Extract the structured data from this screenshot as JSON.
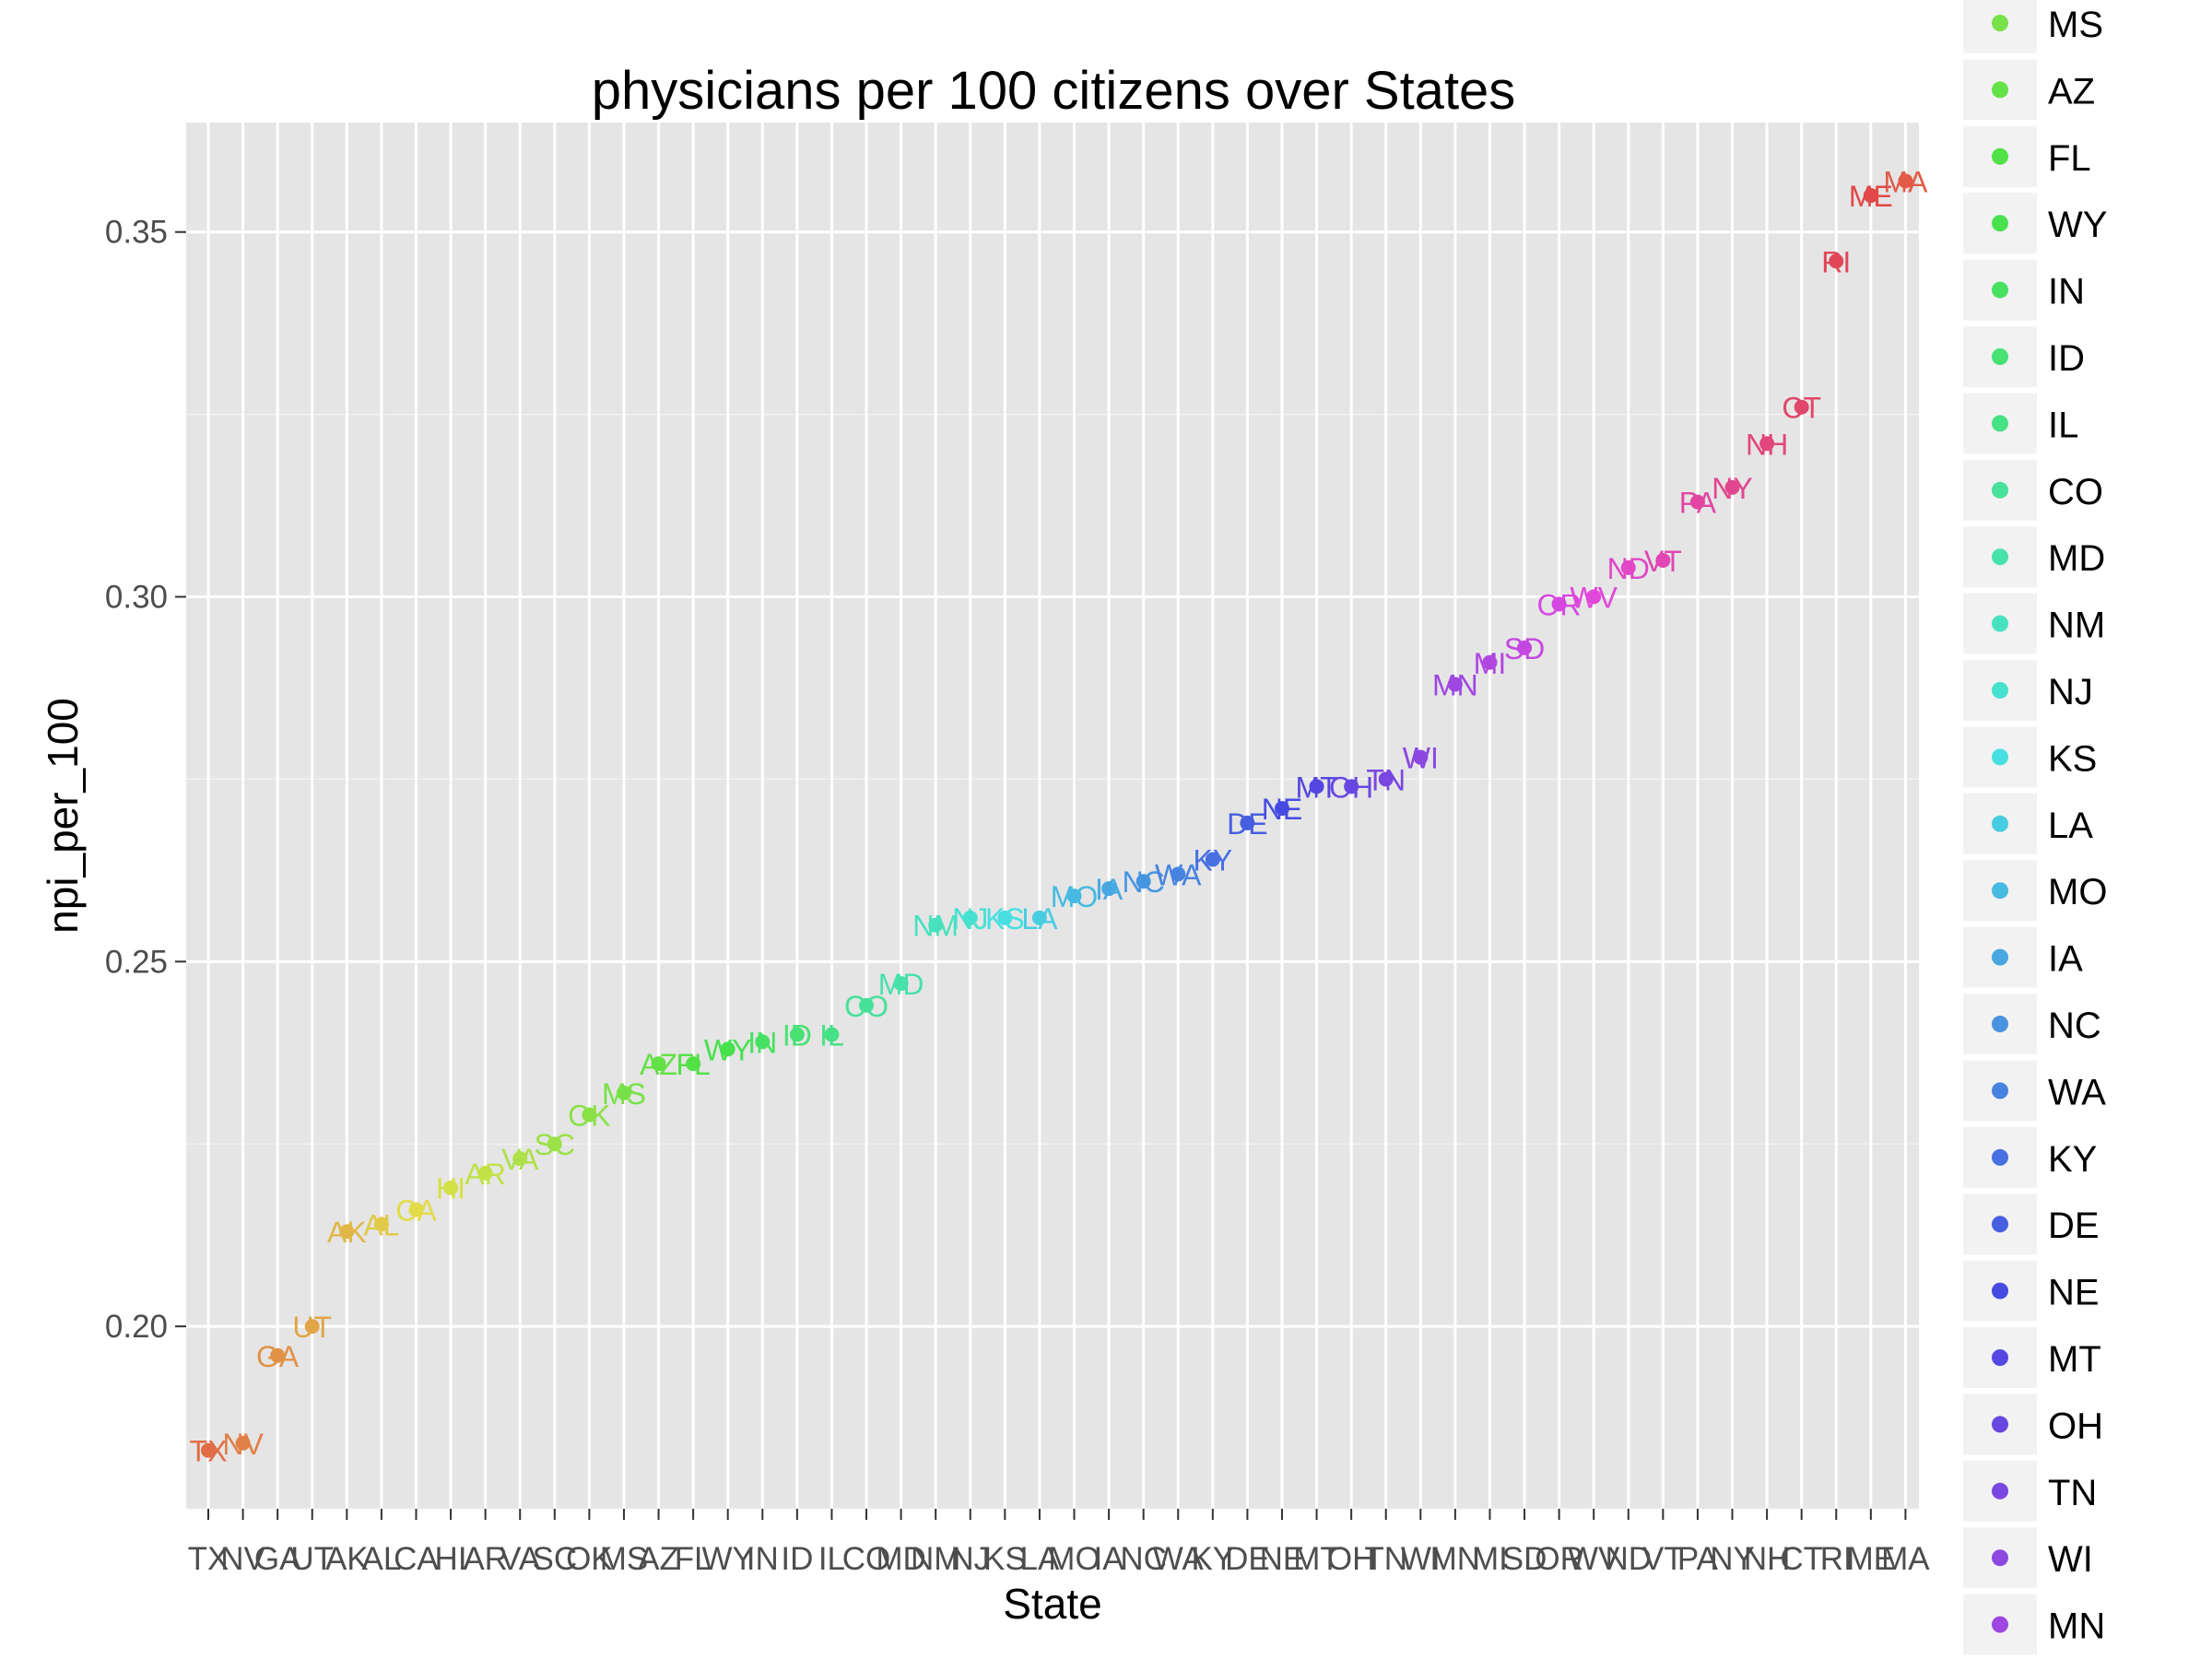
{
  "chart_data": {
    "type": "scatter",
    "title": "physicians per 100 citizens over States",
    "xlabel": "State",
    "ylabel": "npi_per_100",
    "ylim": [
      0.175,
      0.365
    ],
    "yticks": [
      "0.20",
      "0.25",
      "0.30",
      "0.35"
    ],
    "grid": true,
    "legend_placement": "right",
    "categories": [
      "TX",
      "NV",
      "GA",
      "UT",
      "AK",
      "AL",
      "CA",
      "HI",
      "AR",
      "VA",
      "SC",
      "OK",
      "MS",
      "AZ",
      "FL",
      "WY",
      "IN",
      "ID",
      "IL",
      "CO",
      "MD",
      "NM",
      "NJ",
      "KS",
      "LA",
      "MO",
      "IA",
      "NC",
      "WA",
      "KY",
      "DE",
      "NE",
      "MT",
      "OH",
      "TN",
      "WI",
      "MN",
      "MI",
      "SD",
      "OR",
      "WV",
      "ND",
      "VT",
      "PA",
      "NY",
      "NH",
      "CT",
      "RI",
      "ME",
      "MA"
    ],
    "values": [
      0.183,
      0.184,
      0.196,
      0.2,
      0.213,
      0.214,
      0.216,
      0.219,
      0.221,
      0.223,
      0.225,
      0.229,
      0.232,
      0.236,
      0.236,
      0.238,
      0.239,
      0.24,
      0.24,
      0.244,
      0.247,
      0.255,
      0.256,
      0.256,
      0.256,
      0.259,
      0.26,
      0.261,
      0.262,
      0.264,
      0.269,
      0.271,
      0.274,
      0.274,
      0.275,
      0.278,
      0.288,
      0.291,
      0.293,
      0.299,
      0.3,
      0.304,
      0.305,
      0.313,
      0.315,
      0.321,
      0.326,
      0.346,
      0.355,
      0.357
    ]
  },
  "legend": {
    "items": [
      "MS",
      "AZ",
      "FL",
      "WY",
      "IN",
      "ID",
      "IL",
      "CO",
      "MD",
      "NM",
      "NJ",
      "KS",
      "LA",
      "MO",
      "IA",
      "NC",
      "WA",
      "KY",
      "DE",
      "NE",
      "MT",
      "OH",
      "TN",
      "WI",
      "MN"
    ]
  }
}
